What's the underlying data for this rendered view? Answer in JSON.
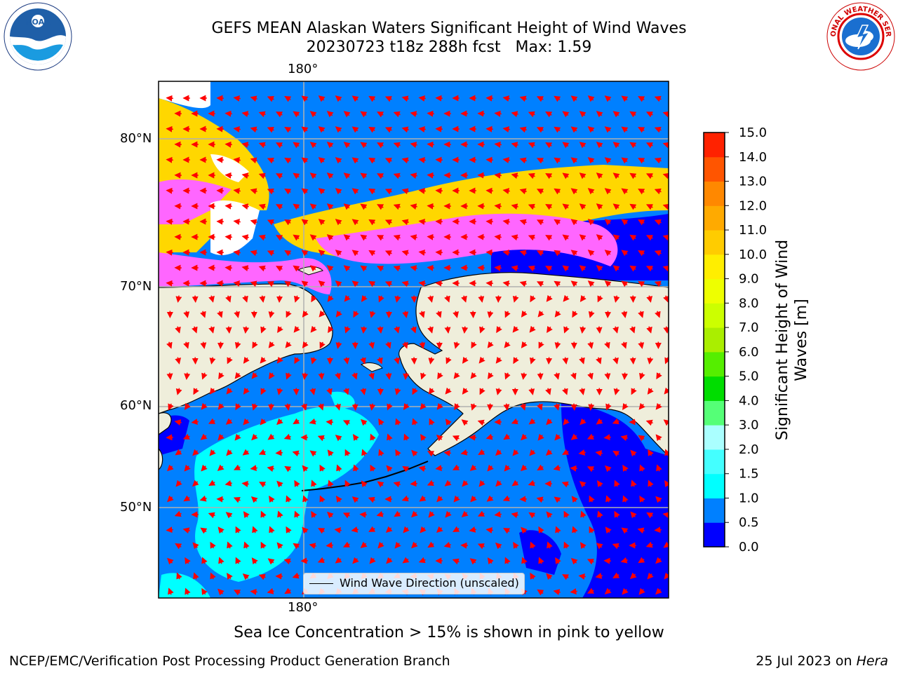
{
  "header": {
    "title_line1": "GEFS MEAN Alaskan Waters Significant Height of Wind Waves",
    "title_line2": "20230723 t18z 288h fcst   Max: 1.59"
  },
  "logos": {
    "left": {
      "name": "noaa-logo",
      "text": "NOAA"
    },
    "right": {
      "name": "nws-logo",
      "text": "NATIONAL WEATHER SERVICE"
    }
  },
  "map": {
    "projection_lon_labels": [
      "180°",
      "180°"
    ],
    "lat_labels": [
      "80°N",
      "70°N",
      "60°N",
      "50°N"
    ],
    "colors": {
      "land": "#efeedb",
      "water_low": "#0000ff",
      "water_mid": "#0080ff",
      "water_high": "#00ffff",
      "sea_ice_low": "#ff66ff",
      "sea_ice_high": "#ffd700",
      "arrow": "#ff0000",
      "grid": "#b0b0b0"
    },
    "legend_label": "Wind Wave Direction (unscaled)"
  },
  "colorbar": {
    "title": "Significant Height of Wind Waves [m]",
    "ticks": [
      "0.0",
      "0.5",
      "1.0",
      "1.5",
      "2.0",
      "3.0",
      "4.0",
      "5.0",
      "6.0",
      "7.0",
      "8.0",
      "9.0",
      "10.0",
      "11.0",
      "12.0",
      "13.0",
      "14.0",
      "15.0"
    ],
    "colors": [
      "#0000ff",
      "#0080ff",
      "#00ffff",
      "#44ffff",
      "#aaffff",
      "#55ff77",
      "#00dd00",
      "#55ee00",
      "#aaee00",
      "#ccff00",
      "#eeff00",
      "#ffee00",
      "#ffcc00",
      "#ffaa00",
      "#ff8800",
      "#ff5500",
      "#ff2200"
    ]
  },
  "footer": {
    "caption": "Sea Ice Concentration > 15% is shown in pink to yellow",
    "left": "NCEP/EMC/Verification Post Processing Product Generation Branch",
    "right_prefix": "25 Jul 2023 on ",
    "right_italic": "Hera"
  }
}
